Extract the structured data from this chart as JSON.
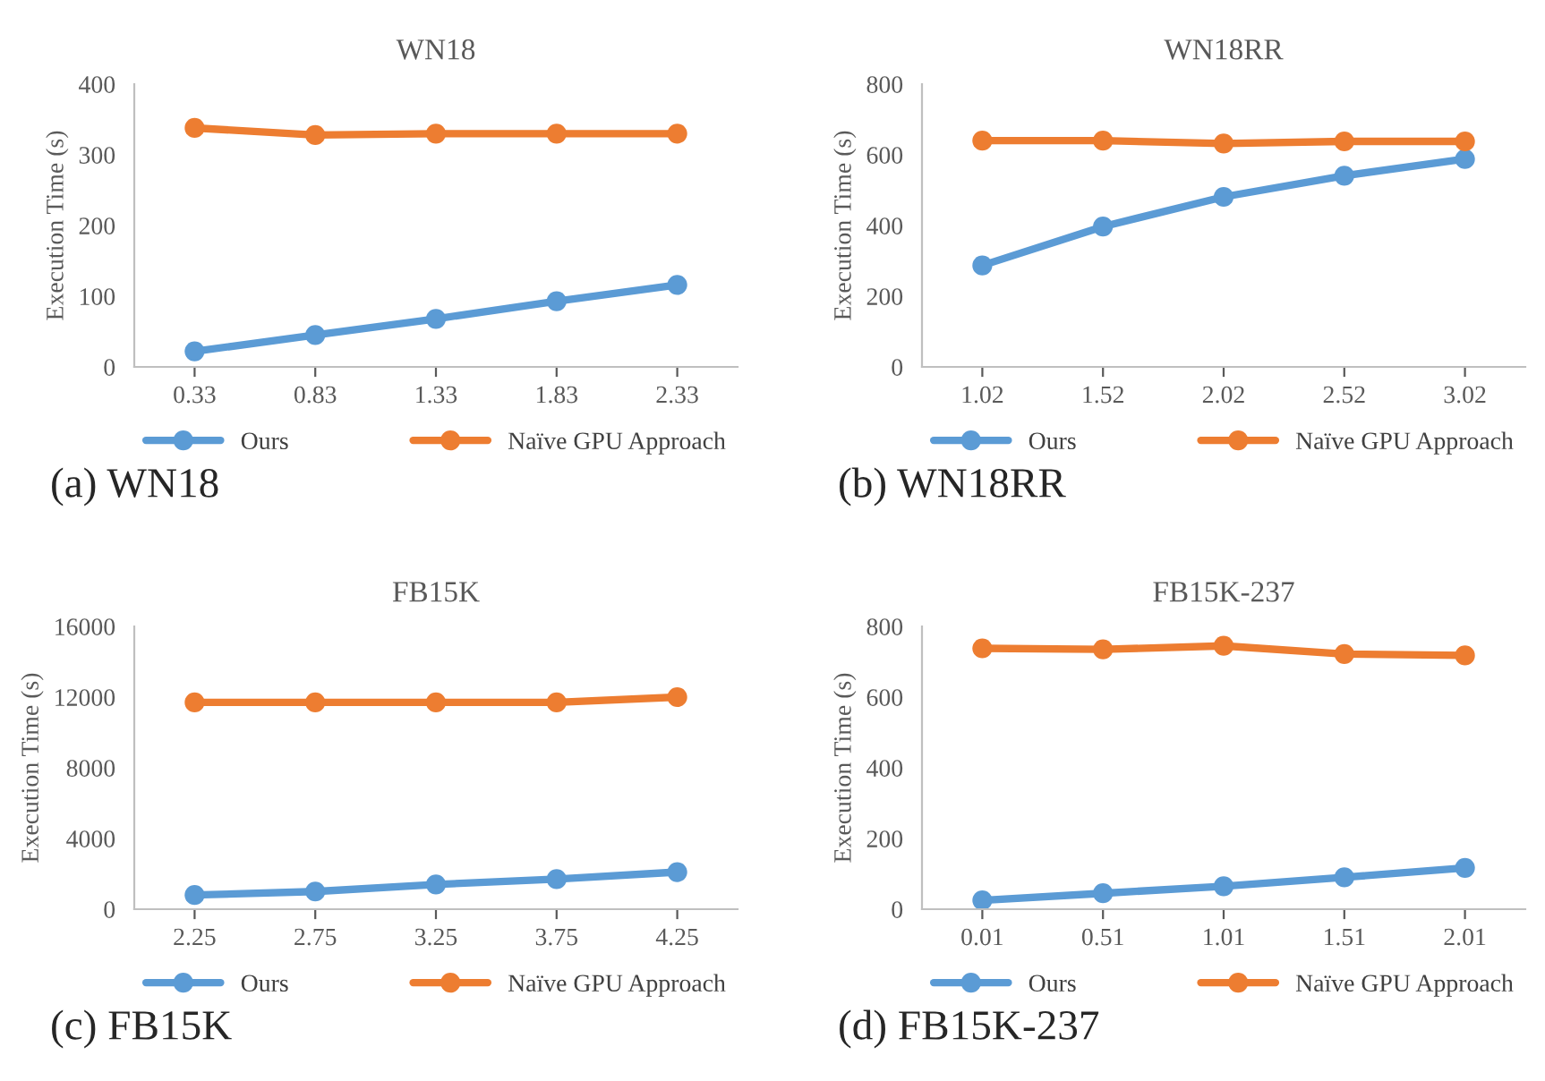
{
  "chart_data": [
    {
      "type": "line",
      "title": "WN18",
      "ylabel": "Execution Time (s)",
      "categories": [
        "0.33",
        "0.83",
        "1.33",
        "1.83",
        "2.33"
      ],
      "ylim": [
        0,
        400
      ],
      "yticks": [
        0,
        100,
        200,
        300,
        400
      ],
      "legend": "bottom",
      "marker": "circle",
      "grid": false,
      "annotations": [
        "(a) WN18"
      ],
      "series": [
        {
          "name": "Ours",
          "color": "#5b9bd5",
          "values": [
            22,
            45,
            68,
            93,
            116
          ]
        },
        {
          "name": "Naïve GPU Approach",
          "color": "#ed7d31",
          "values": [
            338,
            328,
            330,
            330,
            330
          ]
        }
      ]
    },
    {
      "type": "line",
      "title": "WN18RR",
      "ylabel": "Execution Time (s)",
      "categories": [
        "1.02",
        "1.52",
        "2.02",
        "2.52",
        "3.02"
      ],
      "ylim": [
        0,
        800
      ],
      "yticks": [
        0,
        200,
        400,
        600,
        800
      ],
      "legend": "bottom",
      "marker": "circle",
      "grid": false,
      "annotations": [
        "(b) WN18RR"
      ],
      "series": [
        {
          "name": "Ours",
          "color": "#5b9bd5",
          "values": [
            287,
            397,
            481,
            541,
            588
          ]
        },
        {
          "name": "Naïve GPU Approach",
          "color": "#ed7d31",
          "values": [
            640,
            640,
            632,
            638,
            638
          ]
        }
      ]
    },
    {
      "type": "line",
      "title": "FB15K",
      "ylabel": "Execution Time (s)",
      "categories": [
        "2.25",
        "2.75",
        "3.25",
        "3.75",
        "4.25"
      ],
      "ylim": [
        0,
        16000
      ],
      "yticks": [
        0,
        4000,
        8000,
        12000,
        16000
      ],
      "legend": "bottom",
      "marker": "circle",
      "grid": false,
      "annotations": [
        "(c) FB15K"
      ],
      "series": [
        {
          "name": "Ours",
          "color": "#5b9bd5",
          "values": [
            800,
            1000,
            1400,
            1700,
            2100
          ]
        },
        {
          "name": "Naïve GPU Approach",
          "color": "#ed7d31",
          "values": [
            11700,
            11700,
            11700,
            11700,
            12000
          ]
        }
      ]
    },
    {
      "type": "line",
      "title": "FB15K-237",
      "ylabel": "Execution Time (s)",
      "categories": [
        "0.01",
        "0.51",
        "1.01",
        "1.51",
        "2.01"
      ],
      "ylim": [
        0,
        800
      ],
      "yticks": [
        0,
        200,
        400,
        600,
        800
      ],
      "legend": "bottom",
      "marker": "circle",
      "grid": false,
      "annotations": [
        "(d) FB15K-237"
      ],
      "series": [
        {
          "name": "Ours",
          "color": "#5b9bd5",
          "values": [
            25,
            45,
            65,
            90,
            117
          ]
        },
        {
          "name": "Naïve GPU Approach",
          "color": "#ed7d31",
          "values": [
            738,
            735,
            745,
            722,
            718
          ]
        }
      ]
    }
  ]
}
